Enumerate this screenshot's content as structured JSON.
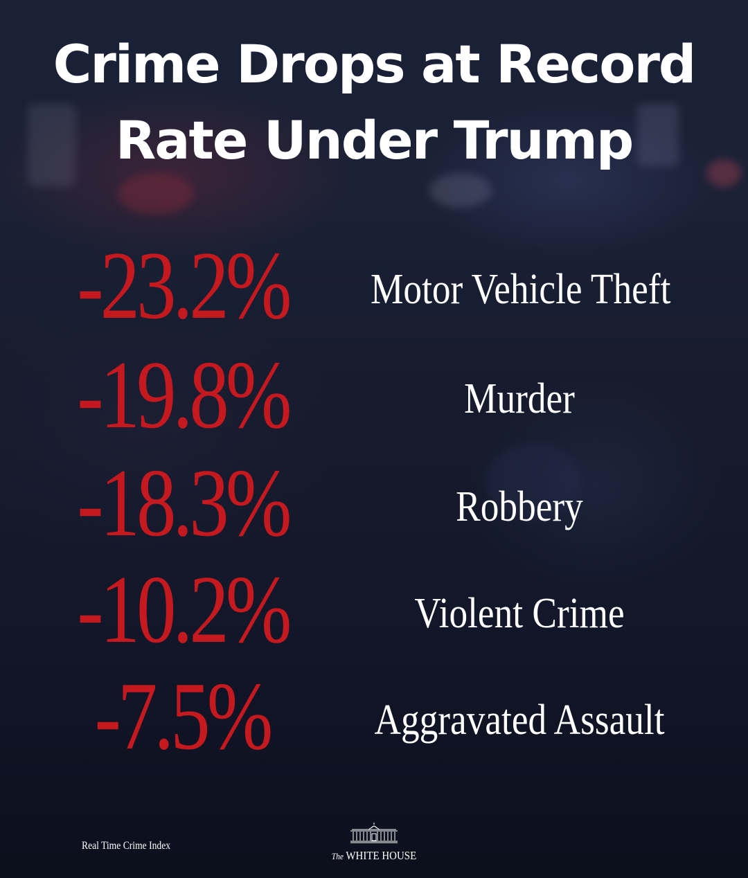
{
  "title": {
    "line1": "Crime Drops at Record",
    "line2": "Rate Under Trump"
  },
  "stats": [
    {
      "value": "-23.2%",
      "label": "Motor Vehicle Theft"
    },
    {
      "value": "-19.8%",
      "label": "Murder"
    },
    {
      "value": "-18.3%",
      "label": "Robbery"
    },
    {
      "value": "-10.2%",
      "label": "Violent Crime"
    },
    {
      "value": "-7.5%",
      "label": "Aggravated Assault"
    }
  ],
  "footer": {
    "source": "Real Time Crime Index",
    "logo_prefix": "The",
    "logo_name": "WHITE HOUSE"
  },
  "colors": {
    "stat_value": "#c3191f",
    "text": "#ffffff",
    "background": "#141a2c"
  }
}
